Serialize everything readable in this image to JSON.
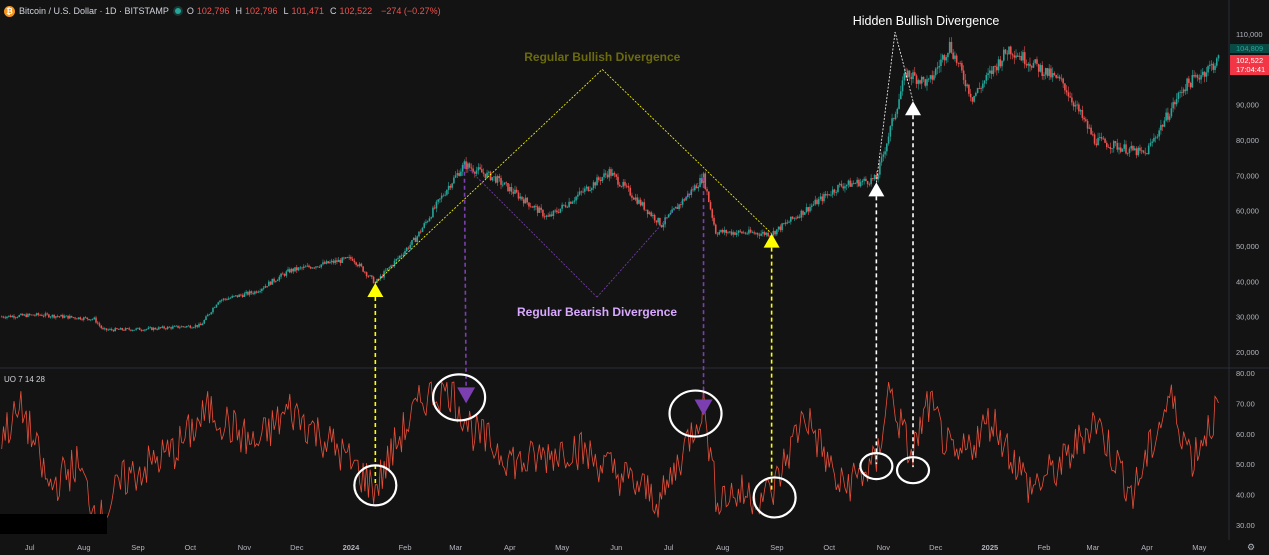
{
  "header": {
    "symbol": "Bitcoin / U.S. Dollar · 1D · BITSTAMP",
    "ohlc": [
      {
        "k": "O",
        "v": "102,796"
      },
      {
        "k": "H",
        "v": "102,796"
      },
      {
        "k": "L",
        "v": "101,471"
      },
      {
        "k": "C",
        "v": "102,522"
      },
      {
        "k": "",
        "v": "−274 (−0.27%)"
      }
    ]
  },
  "indicator": {
    "label": "UO 7 14 28"
  },
  "colors": {
    "background": "#131313",
    "up": "#26a69a",
    "down": "#ef5350",
    "uo_line": "#e8503a",
    "yellow": "#ffff00",
    "purple": "#7b3fb0",
    "white": "#ffffff"
  },
  "chart_data": [
    {
      "type": "candlestick",
      "price_axis": {
        "ticks": [
          "110,000",
          "100,000",
          "90,000",
          "80,000",
          "70,000",
          "60,000",
          "50,000",
          "40,000",
          "30,000",
          "20,000"
        ],
        "ylim": [
          16000,
          114000
        ],
        "last_price_labels": [
          "104,809",
          "102,522",
          "17:04:41"
        ]
      },
      "x_axis": {
        "ticks": [
          "Jul",
          "Aug",
          "Sep",
          "Oct",
          "Nov",
          "Dec",
          "2024",
          "Feb",
          "Mar",
          "Apr",
          "May",
          "Jun",
          "Jul",
          "Aug",
          "Sep",
          "Oct",
          "Nov",
          "Dec",
          "2025",
          "Feb",
          "Mar",
          "Apr",
          "May"
        ]
      },
      "price_path": [
        {
          "date": "2023-06-23",
          "close": 30000
        },
        {
          "date": "2023-07-15",
          "close": 30500
        },
        {
          "date": "2023-08-15",
          "close": 29300
        },
        {
          "date": "2023-08-20",
          "close": 26200
        },
        {
          "date": "2023-09-15",
          "close": 26500
        },
        {
          "date": "2023-10-15",
          "close": 27500
        },
        {
          "date": "2023-10-25",
          "close": 34500
        },
        {
          "date": "2023-11-15",
          "close": 37000
        },
        {
          "date": "2023-12-05",
          "close": 43000
        },
        {
          "date": "2024-01-10",
          "close": 46500
        },
        {
          "date": "2024-01-23",
          "close": 39500
        },
        {
          "date": "2024-02-15",
          "close": 52000
        },
        {
          "date": "2024-03-05",
          "close": 67000
        },
        {
          "date": "2024-03-14",
          "close": 73000
        },
        {
          "date": "2024-04-01",
          "close": 69000
        },
        {
          "date": "2024-05-01",
          "close": 58000
        },
        {
          "date": "2024-06-05",
          "close": 71000
        },
        {
          "date": "2024-07-05",
          "close": 56000
        },
        {
          "date": "2024-07-29",
          "close": 69500
        },
        {
          "date": "2024-08-05",
          "close": 54000
        },
        {
          "date": "2024-09-06",
          "close": 53500
        },
        {
          "date": "2024-10-15",
          "close": 67000
        },
        {
          "date": "2024-11-05",
          "close": 69000
        },
        {
          "date": "2024-11-22",
          "close": 99000
        },
        {
          "date": "2024-12-05",
          "close": 96000
        },
        {
          "date": "2024-12-17",
          "close": 107000
        },
        {
          "date": "2024-12-30",
          "close": 92000
        },
        {
          "date": "2025-01-20",
          "close": 106000
        },
        {
          "date": "2025-02-20",
          "close": 96000
        },
        {
          "date": "2025-03-10",
          "close": 80000
        },
        {
          "date": "2025-04-08",
          "close": 76000
        },
        {
          "date": "2025-04-30",
          "close": 95000
        },
        {
          "date": "2025-05-20",
          "close": 102522
        }
      ]
    },
    {
      "type": "line",
      "name": "UO 7 14 28",
      "y_axis": {
        "ticks": [
          "80.00",
          "70.00",
          "60.00",
          "50.00",
          "40.00",
          "30.00"
        ],
        "ylim": [
          26,
          81
        ]
      },
      "uo_path": [
        {
          "date": "2023-06-23",
          "value": 60
        },
        {
          "date": "2023-07-05",
          "value": 68
        },
        {
          "date": "2023-07-20",
          "value": 42
        },
        {
          "date": "2023-08-05",
          "value": 50
        },
        {
          "date": "2023-08-18",
          "value": 31
        },
        {
          "date": "2023-09-01",
          "value": 45
        },
        {
          "date": "2023-10-01",
          "value": 55
        },
        {
          "date": "2023-10-20",
          "value": 68
        },
        {
          "date": "2023-11-15",
          "value": 56
        },
        {
          "date": "2023-12-05",
          "value": 68
        },
        {
          "date": "2024-01-01",
          "value": 55
        },
        {
          "date": "2024-01-23",
          "value": 42
        },
        {
          "date": "2024-02-05",
          "value": 58
        },
        {
          "date": "2024-02-20",
          "value": 72
        },
        {
          "date": "2024-03-05",
          "value": 75
        },
        {
          "date": "2024-03-20",
          "value": 60
        },
        {
          "date": "2024-04-15",
          "value": 50
        },
        {
          "date": "2024-05-15",
          "value": 56
        },
        {
          "date": "2024-06-15",
          "value": 45
        },
        {
          "date": "2024-07-05",
          "value": 38
        },
        {
          "date": "2024-07-29",
          "value": 70
        },
        {
          "date": "2024-08-05",
          "value": 40
        },
        {
          "date": "2024-09-06",
          "value": 40
        },
        {
          "date": "2024-09-25",
          "value": 67
        },
        {
          "date": "2024-10-15",
          "value": 42
        },
        {
          "date": "2024-11-05",
          "value": 50
        },
        {
          "date": "2024-11-12",
          "value": 75
        },
        {
          "date": "2024-11-25",
          "value": 52
        },
        {
          "date": "2024-12-05",
          "value": 70
        },
        {
          "date": "2024-12-20",
          "value": 50
        },
        {
          "date": "2025-01-10",
          "value": 65
        },
        {
          "date": "2025-02-01",
          "value": 42
        },
        {
          "date": "2025-02-20",
          "value": 50
        },
        {
          "date": "2025-03-10",
          "value": 65
        },
        {
          "date": "2025-04-01",
          "value": 40
        },
        {
          "date": "2025-04-22",
          "value": 72
        },
        {
          "date": "2025-05-05",
          "value": 52
        },
        {
          "date": "2025-05-20",
          "value": 69
        }
      ]
    }
  ],
  "annotations": {
    "regular_bullish": {
      "label": "Regular Bullish Divergence",
      "color": "#6b6b0e",
      "price_low1": {
        "date": "2024-01-23",
        "price": 39500
      },
      "apex": {
        "date": "2024-06-01",
        "price": 100000
      },
      "price_low2": {
        "date": "2024-09-06",
        "price": 53500
      },
      "uo_low1": {
        "date": "2024-01-23",
        "value": 43
      },
      "uo_low2": {
        "date": "2024-09-06",
        "value": 41
      }
    },
    "regular_bearish": {
      "label": "Regular Bearish Divergence",
      "color": "#d9a8ff",
      "price_high1": {
        "date": "2024-03-14",
        "price": 73000
      },
      "bottom": {
        "date": "2024-05-29",
        "price": 35500
      },
      "price_high2": {
        "date": "2024-07-29",
        "price": 69500
      },
      "uo_high1": {
        "date": "2024-03-15",
        "value": 70
      },
      "uo_high2": {
        "date": "2024-07-29",
        "value": 66
      }
    },
    "hidden_bullish": {
      "label": "Hidden Bullish Divergence",
      "color": "#ffffff",
      "price_low1": {
        "date": "2024-11-05",
        "price": 68000
      },
      "price_low2": {
        "date": "2024-11-26",
        "price": 91000
      },
      "apex": {
        "date": "2024-11-18",
        "price": 114000
      },
      "uo_low1": {
        "date": "2024-11-05",
        "value": 50
      },
      "uo_low2": {
        "date": "2024-11-26",
        "value": 49
      }
    }
  }
}
